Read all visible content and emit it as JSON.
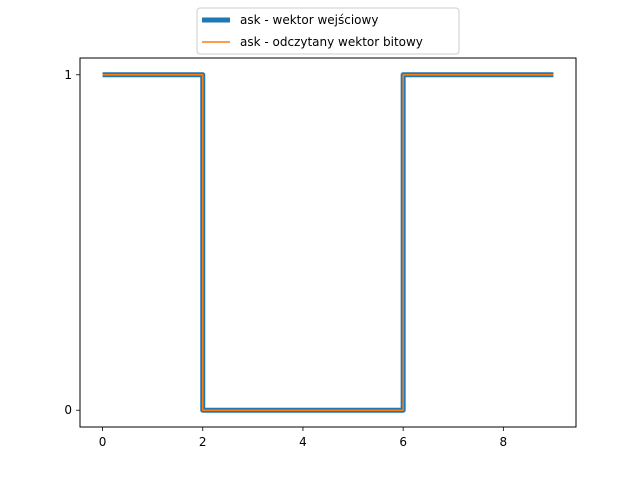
{
  "chart_data": {
    "type": "line",
    "title": "",
    "xlabel": "",
    "ylabel": "",
    "xlim": [
      -0.45,
      9.45
    ],
    "ylim": [
      -0.05,
      1.05
    ],
    "xticks": [
      0,
      2,
      4,
      6,
      8
    ],
    "yticks": [
      0,
      1
    ],
    "x_tick_labels": [
      "0",
      "2",
      "4",
      "6",
      "8"
    ],
    "y_tick_labels": [
      "0",
      "1"
    ],
    "grid": false,
    "legend_position": "upper center, outside plot",
    "series": [
      {
        "name": "ask - wektor wejściowy",
        "color": "#1f77b4",
        "style": "thick",
        "x": [
          0,
          2,
          2,
          6,
          6,
          9
        ],
        "y": [
          1,
          1,
          0,
          0,
          1,
          1
        ]
      },
      {
        "name": "ask - odczytany wektor bitowy",
        "color": "#ff7f0e",
        "style": "thin",
        "x": [
          0,
          2,
          2,
          6,
          6,
          9
        ],
        "y": [
          1,
          1,
          0,
          0,
          1,
          1
        ]
      }
    ]
  }
}
